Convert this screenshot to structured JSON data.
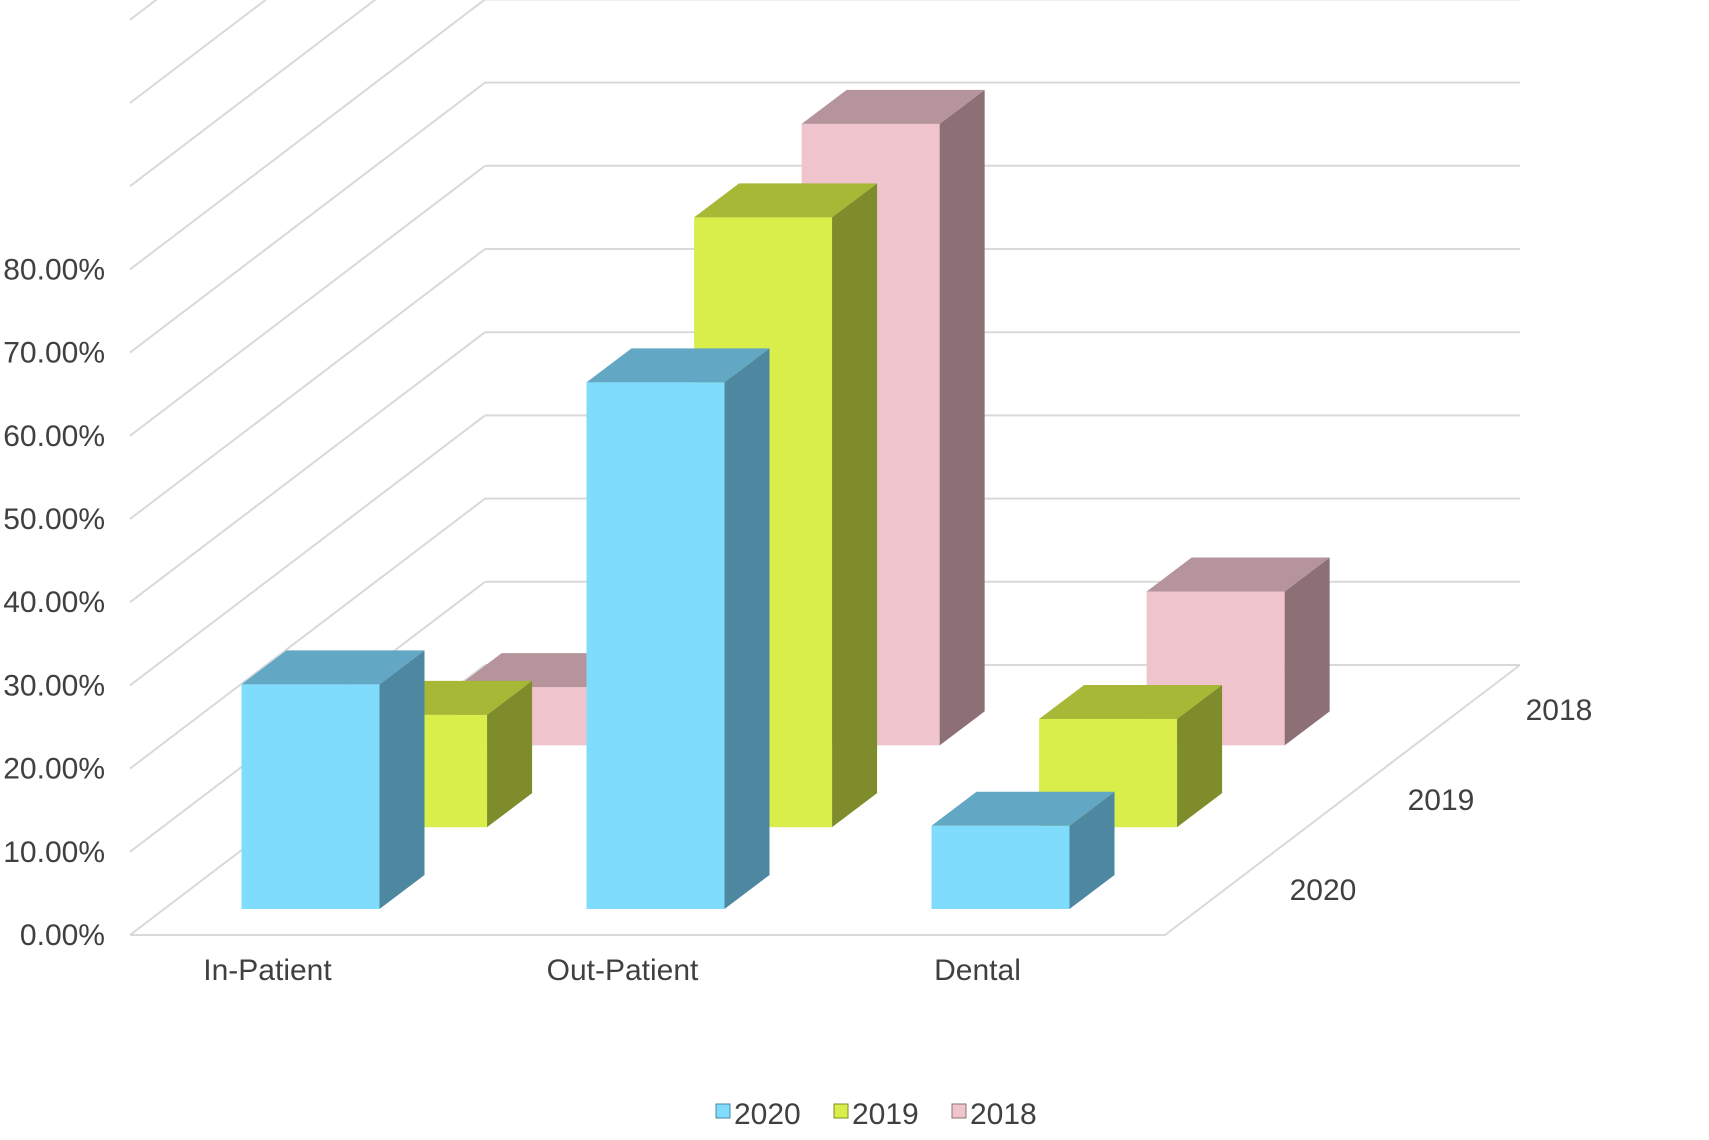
{
  "chart_data": {
    "type": "bar",
    "variant": "3d-clustered-column",
    "title": "",
    "xlabel": "",
    "ylabel": "",
    "categories": [
      "In-Patient",
      "Out-Patient",
      "Dental"
    ],
    "series": [
      {
        "name": "2020",
        "values": [
          27.0,
          63.3,
          10.0
        ],
        "color": "#7fdcfc",
        "side_color": "#4e87a0",
        "top_color": "#62a8c4"
      },
      {
        "name": "2019",
        "values": [
          13.5,
          73.3,
          13.0
        ],
        "color": "#d9ee4a",
        "side_color": "#7f8c2b",
        "top_color": "#a6b835"
      },
      {
        "name": "2018",
        "values": [
          7.0,
          74.7,
          18.5
        ],
        "color": "#efc4cc",
        "side_color": "#8d6f76",
        "top_color": "#b5949b"
      }
    ],
    "depth_labels": [
      "2020",
      "2019",
      "2018"
    ],
    "y_ticks": [
      "0.00%",
      "10.00%",
      "20.00%",
      "30.00%",
      "40.00%",
      "50.00%",
      "60.00%",
      "70.00%",
      "80.00%"
    ],
    "ylim": [
      0,
      80
    ],
    "grid": true,
    "legend": {
      "position": "bottom",
      "items": [
        "2020",
        "2019",
        "2018"
      ]
    }
  }
}
